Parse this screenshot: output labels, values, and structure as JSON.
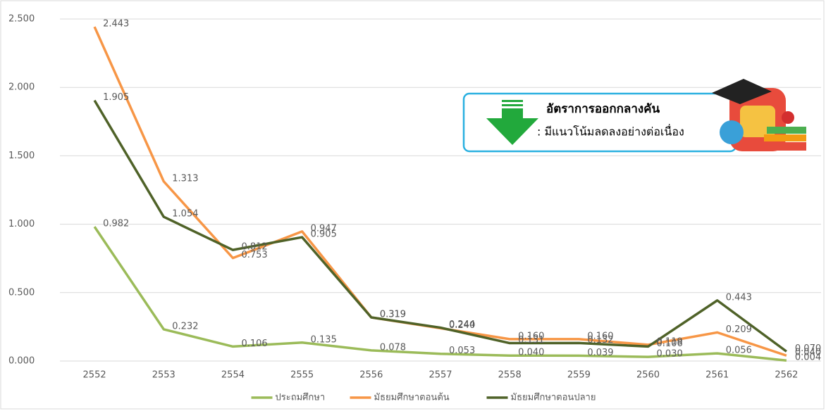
{
  "chart_data": {
    "type": "line",
    "categories": [
      "2552",
      "2553",
      "2554",
      "2555",
      "2556",
      "2557",
      "2558",
      "2559",
      "2560",
      "2561",
      "2562"
    ],
    "series": [
      {
        "name": "ประถมศึกษา",
        "color": "#9bbb59",
        "values": [
          0.982,
          0.232,
          0.106,
          0.135,
          0.078,
          0.053,
          0.04,
          0.039,
          0.03,
          0.056,
          0.004
        ],
        "value_labels": [
          "0.982",
          "0.232",
          "0.106",
          "0.135",
          "0.078",
          "0.053",
          "0.040",
          "0.039",
          "0.030",
          "0.056",
          "0.004"
        ]
      },
      {
        "name": "มัธยมศึกษาตอนต้น",
        "color": "#f79646",
        "values": [
          2.443,
          1.313,
          0.753,
          0.947,
          0.319,
          0.24,
          0.16,
          0.16,
          0.119,
          0.209,
          0.04
        ],
        "value_labels": [
          "2.443",
          "1.313",
          "0.753",
          "0.947",
          "0.319",
          "0.240",
          "0.160",
          "0.160",
          "0.119",
          "0.209",
          "0.040"
        ]
      },
      {
        "name": "มัธยมศึกษาตอนปลาย",
        "color": "#4f6228",
        "values": [
          1.905,
          1.054,
          0.812,
          0.905,
          0.319,
          0.244,
          0.131,
          0.132,
          0.106,
          0.443,
          0.07
        ],
        "value_labels": [
          "1.905",
          "1.054",
          "0.812",
          "0.905",
          "0.319",
          "0.244",
          "0.131",
          "0.132",
          "0.106",
          "0.443",
          "0.070"
        ]
      }
    ],
    "ylim": [
      0,
      2.5
    ],
    "yticks": [
      {
        "value": 0,
        "label": "0.000"
      },
      {
        "value": 0.5,
        "label": "0.500"
      },
      {
        "value": 1,
        "label": "1.000"
      },
      {
        "value": 1.5,
        "label": "1.500"
      },
      {
        "value": 2,
        "label": "2.000"
      },
      {
        "value": 2.5,
        "label": "2.500"
      }
    ],
    "grid": true,
    "legend": "bottom",
    "annotations": [
      "อัตราการออกกลางคัน",
      ": มีแนวโน้มลดลงอย่างต่อเนื่อง"
    ]
  }
}
